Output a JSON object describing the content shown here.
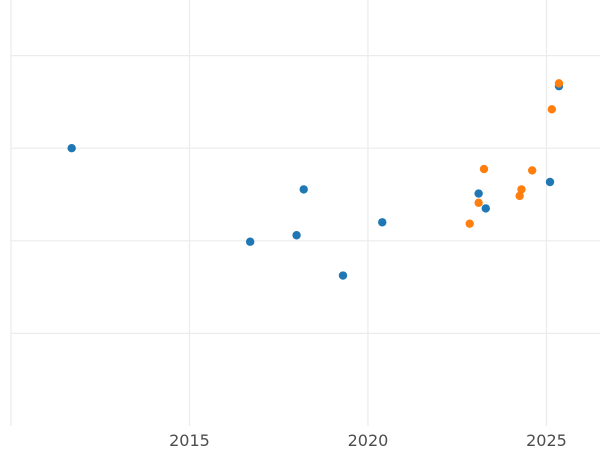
{
  "chart_data": {
    "type": "scatter",
    "title": "",
    "xlabel": "",
    "ylabel": "",
    "xlim": [
      2010.0,
      2026.5
    ],
    "ylim": [
      0,
      100
    ],
    "x_ticks": [
      2015,
      2020,
      2025
    ],
    "x_tick_labels": [
      "2015",
      "2020",
      "2025"
    ],
    "y_gridlines": [
      20,
      40,
      60,
      80
    ],
    "grid": true,
    "legend": "none",
    "series": [
      {
        "color": "#1f77b4",
        "points": [
          {
            "x": 2011.7,
            "y": 60.0
          },
          {
            "x": 2016.7,
            "y": 39.8
          },
          {
            "x": 2018.0,
            "y": 41.2
          },
          {
            "x": 2018.2,
            "y": 51.1
          },
          {
            "x": 2019.3,
            "y": 32.5
          },
          {
            "x": 2020.4,
            "y": 44.0
          },
          {
            "x": 2023.1,
            "y": 50.2
          },
          {
            "x": 2023.3,
            "y": 47.0
          },
          {
            "x": 2025.1,
            "y": 52.7
          },
          {
            "x": 2025.35,
            "y": 73.4
          }
        ]
      },
      {
        "color": "#ff7f0e",
        "points": [
          {
            "x": 2022.85,
            "y": 43.7
          },
          {
            "x": 2023.1,
            "y": 48.2
          },
          {
            "x": 2023.25,
            "y": 55.5
          },
          {
            "x": 2024.25,
            "y": 49.7
          },
          {
            "x": 2024.3,
            "y": 51.1
          },
          {
            "x": 2024.6,
            "y": 55.2
          },
          {
            "x": 2025.15,
            "y": 68.4
          },
          {
            "x": 2025.35,
            "y": 74.0
          }
        ]
      }
    ]
  }
}
